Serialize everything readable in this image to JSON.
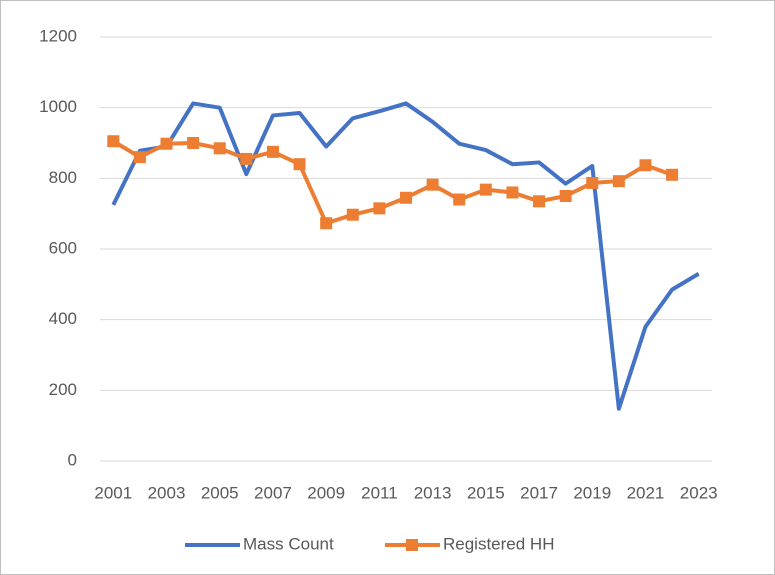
{
  "chart_data": {
    "type": "line",
    "categories": [
      "2001",
      null,
      "2003",
      null,
      "2005",
      null,
      "2007",
      null,
      "2009",
      null,
      "2011",
      null,
      "2013",
      null,
      "2015",
      null,
      "2017",
      null,
      "2019",
      null,
      "2021",
      null,
      "2023"
    ],
    "series": [
      {
        "name": "Mass Count",
        "color": "#4472c4",
        "marker": false,
        "values": [
          725,
          878,
          890,
          1012,
          1000,
          812,
          978,
          985,
          890,
          970,
          990,
          1012,
          960,
          898,
          880,
          840,
          845,
          785,
          835,
          148,
          380,
          485,
          530
        ]
      },
      {
        "name": "Registered HH",
        "color": "#ed7d31",
        "marker": true,
        "values": [
          905,
          860,
          898,
          900,
          885,
          855,
          875,
          840,
          673,
          697,
          715,
          745,
          782,
          740,
          768,
          760,
          735,
          750,
          787,
          792,
          837,
          810,
          null
        ]
      }
    ],
    "ylim": [
      0,
      1200
    ],
    "yticks": [
      0,
      200,
      400,
      600,
      800,
      1000,
      1200
    ],
    "grid": true,
    "legend": "bottom"
  }
}
